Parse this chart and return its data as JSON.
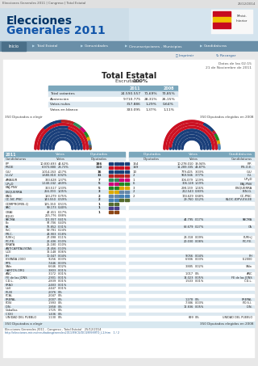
{
  "title": "Total Estatal",
  "breadcrumb": [
    "Inicio",
    "Total Estatal",
    "Comunidades",
    "Circunscripciones - Municipios",
    "Candidaturas"
  ],
  "datos_hora": "Datos de las 02:15",
  "datos_fecha": "21 de Noviembre de 2011",
  "escrutado": "Escrutado 100%",
  "summary_rows": [
    [
      "Total votantes",
      "24.590.557",
      "71,69%",
      "73,85%"
    ],
    [
      "Abstención",
      "9.710.775",
      "28,31%",
      "26,15%"
    ],
    [
      "Votos nulos",
      "317.886",
      "1,29%",
      "0,64%"
    ],
    [
      "Votos en blanco",
      "333.095",
      "1,37%",
      "1,11%"
    ]
  ],
  "parties_2011": [
    {
      "name": "PP",
      "votes": "10.830.693",
      "pct": "44,62%",
      "seats": 186,
      "color": "#1a3f7a"
    },
    {
      "name": "PSOE",
      "votes": "6.973.880",
      "pct": "28,73%",
      "seats": 110,
      "color": "#cc1122"
    },
    {
      "name": "CiU",
      "votes": "1.014.263",
      "pct": "4,17%",
      "seats": 16,
      "color": "#18417a"
    },
    {
      "name": "IU-LV",
      "votes": "1.680.810",
      "pct": "6,92%",
      "seats": 11,
      "color": "#bb2222"
    },
    {
      "name": "AMAIUR",
      "votes": "333.628",
      "pct": "1,37%",
      "seats": 7,
      "color": "#2e8b57"
    },
    {
      "name": "UPyD",
      "votes": "1.140.242",
      "pct": "4,69%",
      "seats": 5,
      "color": "#cc0077"
    },
    {
      "name": "EAJ-PNV",
      "votes": "323.517",
      "pct": "1,33%",
      "seats": 5,
      "color": "#228822"
    },
    {
      "name": "ESQUERRA",
      "votes": "256.393",
      "pct": "1,05%",
      "seats": 3,
      "color": "#ddaa00"
    },
    {
      "name": "BNG",
      "votes": "183.279",
      "pct": "0,75%",
      "seats": 2,
      "color": "#6688aa"
    },
    {
      "name": "CC-NC-PNC",
      "votes": "143.550",
      "pct": "0,59%",
      "seats": 2,
      "color": "#4682b4"
    },
    {
      "name": "COMPROMIS-Q",
      "votes": "125.150",
      "pct": "0,51%",
      "seats": 1,
      "color": "#556b2f"
    },
    {
      "name": "FAC",
      "votes": "99.173",
      "pct": "0,40%",
      "seats": 1,
      "color": "#483d8b"
    },
    {
      "name": "GBAI",
      "votes": "42.411",
      "pct": "0,17%",
      "seats": 1,
      "color": "#8b4513"
    }
  ],
  "parties_2008": [
    {
      "name": "P.P.",
      "votes": "10.278.010",
      "pct": "39,94%",
      "seats": 154,
      "color": "#1a3f7a"
    },
    {
      "name": "P.S.O.E.",
      "votes": "11.289.335",
      "pct": "43,87%",
      "seats": 169,
      "color": "#cc1122"
    },
    {
      "name": "CiU",
      "votes": "779.425",
      "pct": "3,03%",
      "seats": 10,
      "color": "#18417a"
    },
    {
      "name": "I.U.",
      "votes": "969.946",
      "pct": "3,77%",
      "seats": 2,
      "color": "#bb2222"
    },
    {
      "name": "UPyD",
      "votes": "306.079",
      "pct": "1,19%",
      "seats": 1,
      "color": "#cc0077"
    },
    {
      "name": "EAJ-PNV",
      "votes": "306.128",
      "pct": "1,19%",
      "seats": 6,
      "color": "#228822"
    },
    {
      "name": "ESQUERRA",
      "votes": "298.139",
      "pct": "1,16%",
      "seats": 3,
      "color": "#ddaa00"
    },
    {
      "name": "B.N.G.",
      "votes": "212.543",
      "pct": "0,83%",
      "seats": 2,
      "color": "#6688aa"
    },
    {
      "name": "CC-PNC",
      "votes": "174.629",
      "pct": "0,68%",
      "seats": 2,
      "color": "#4682b4"
    },
    {
      "name": "BLOC-IDPV-EV-EE",
      "votes": "29.760",
      "pct": "0,12%",
      "seats": 0,
      "color": "#556b2f"
    }
  ],
  "extra_rows": [
    [
      "EQUO",
      "215.776",
      "0,88%",
      "",
      "",
      "",
      "",
      ""
    ],
    [
      "PACMA",
      "101.557",
      "0,41%",
      "",
      "",
      "44.795",
      "0,17%",
      "PACMA"
    ],
    [
      "Eb",
      "97.706",
      "0,40%",
      "",
      "",
      "",
      "",
      ""
    ],
    [
      "PA",
      "76.852",
      "0,31%",
      "",
      "",
      "68.679",
      "0,27%",
      "CA"
    ],
    [
      "PxC",
      "59.781",
      "0,24%",
      "",
      "",
      "",
      "",
      ""
    ],
    [
      "P.R.C.",
      "43.903",
      "0,18%",
      "",
      "",
      "",
      "",
      ""
    ],
    [
      "PUM+J",
      "27.098",
      "0,11%",
      "",
      "",
      "23.318",
      "0,09%",
      "PUM+J"
    ],
    [
      "P.C.P.E.",
      "26.436",
      "0,10%",
      "",
      "",
      "20.030",
      "0,08%",
      "P.C.P.E."
    ],
    [
      "PIRATA",
      "25.180",
      "0,10%",
      "",
      "",
      "",
      "",
      ""
    ],
    [
      "ANTICAPITALISTAS",
      "24.456",
      "0,10%",
      "",
      "",
      "",
      "",
      ""
    ],
    [
      "UCE",
      "16.148",
      "0,06%",
      "",
      "",
      "",
      "",
      ""
    ],
    [
      "PH",
      "10.047",
      "0,04%",
      "",
      "",
      "9.056",
      "0,04%",
      "PH"
    ],
    [
      "ESPAÑA 2000",
      "9.256",
      "0,03%",
      "",
      "",
      "6.906",
      "0,03%",
      "E-2000"
    ],
    [
      "RPS",
      "7.446",
      "0,03%",
      "",
      "",
      "",
      "",
      ""
    ],
    [
      "SAIn",
      "6.646",
      "0,02%",
      "",
      "",
      "3.885",
      "0,02%",
      "SAIn"
    ],
    [
      "HARTOS.ORG",
      "3.803",
      "0,01%",
      "",
      "",
      "",
      "",
      ""
    ],
    [
      "ANC",
      "3.172",
      "0,01%",
      "",
      "",
      "1.017",
      "0%",
      "ANC"
    ],
    [
      "FE de las JONS",
      "2.901",
      "0,01%",
      "",
      "",
      "14.023",
      "0,05%",
      "FE de las JONS"
    ],
    [
      "C.D.L.",
      "2.839",
      "0,01%",
      "",
      "",
      "1.503",
      "0,01%",
      "C.D.L."
    ],
    [
      "PRAO",
      "2.483",
      "0,01%",
      "",
      "",
      "",
      "",
      ""
    ],
    [
      "UxV",
      "2.447",
      "0,01%",
      "",
      "",
      "",
      "",
      ""
    ],
    [
      "P-LIB",
      "2.076",
      "0%",
      "",
      "",
      "",
      "",
      ""
    ],
    [
      "PCAL",
      "2.047",
      "0%",
      "",
      "",
      "",
      "",
      ""
    ],
    [
      "PREPAL",
      "2.007",
      "0%",
      "",
      "",
      "1.278",
      "0%",
      "PREPAL"
    ],
    [
      "POSI",
      "1.993",
      "0%",
      "",
      "",
      "7.386",
      "0,03%",
      "P.O.S.I."
    ],
    [
      "D.N.",
      "1.858",
      "0%",
      "",
      "",
      "12.836",
      "0,05%",
      "D.N."
    ],
    [
      "Caballas",
      "1.725",
      "0%",
      "",
      "",
      "",
      "",
      ""
    ],
    [
      "C.XXI",
      "1.436",
      "0%",
      "",
      "",
      "",
      "",
      ""
    ],
    [
      "UNIDAD DEL PUEBLO",
      "1.130",
      "0%",
      "",
      "",
      "699",
      "0%",
      "UNIDAD DEL PUEBLO"
    ]
  ],
  "footer_left": "350 Diputados a elegir",
  "footer_right": "350 Diputados elegidos en 2008",
  "page_footer": "Elecciones Generales 2011 - Congreso - Total Estatal   25/12/2014",
  "url": "http://elecciones.mir.es/resultadosgenerales2011/99CG/DCG99999TO_L1.htm   1 / 2",
  "bg_color": "#e8e8e8",
  "nav_bg": "#6a8fa8",
  "table_hdr_bg": "#7ba7bc",
  "alt_row": "#dce8f0",
  "white": "#ffffff",
  "breadcrumb_top": "Elecciones Generales 2011 | Congreso | Total Estatal",
  "breadcrumb_date": "25/12/2014"
}
